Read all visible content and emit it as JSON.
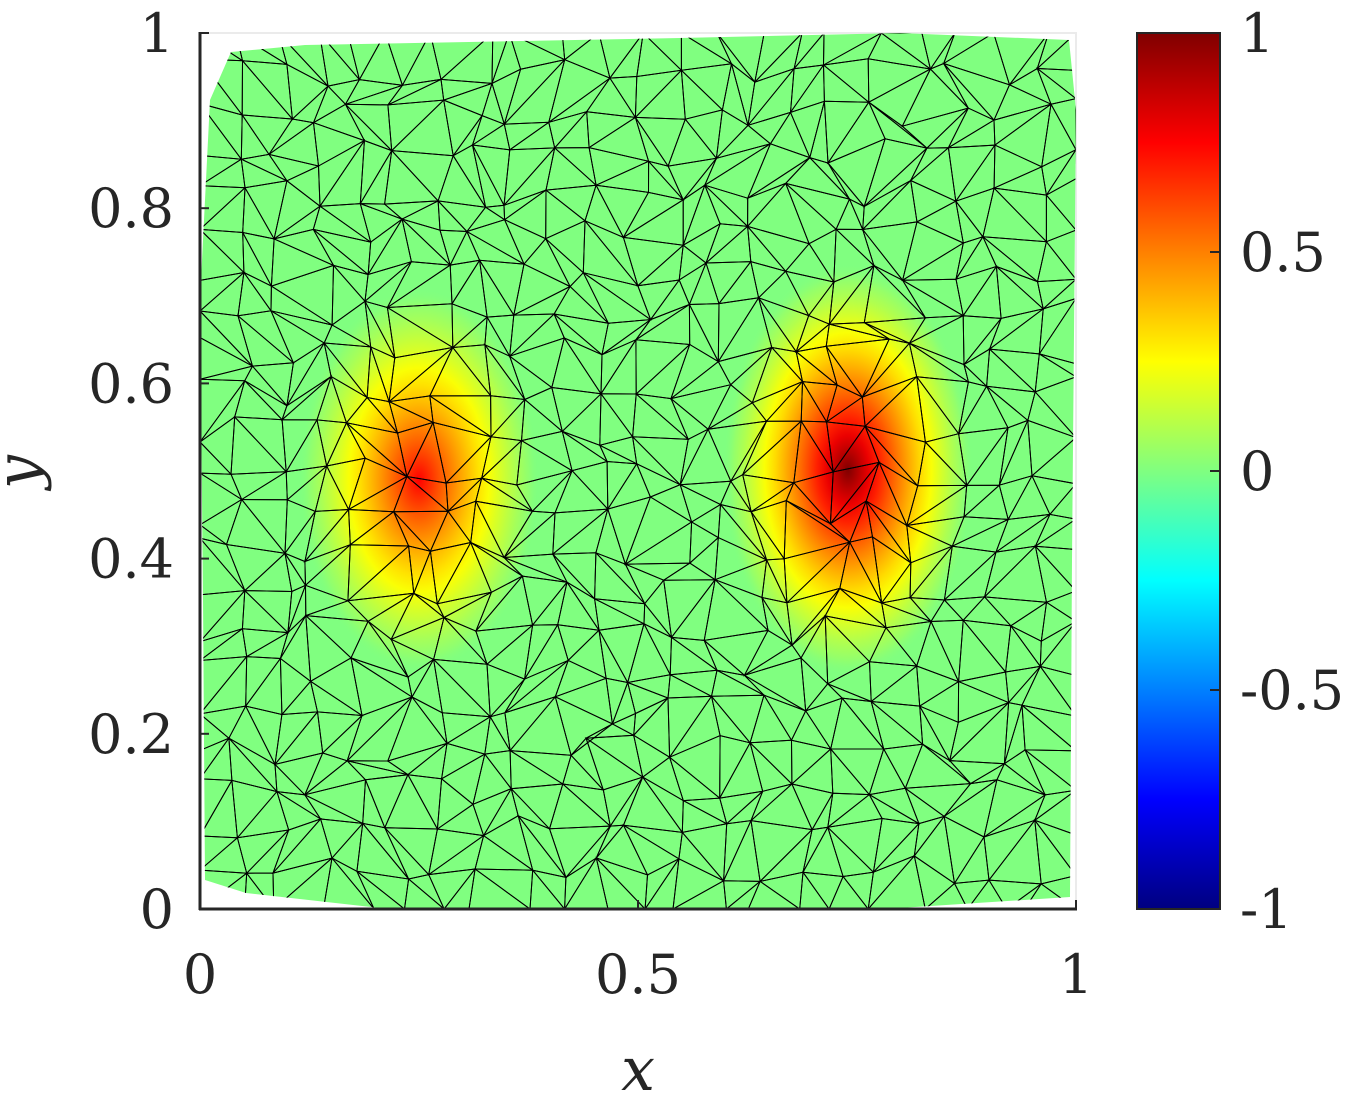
{
  "chart_data": {
    "type": "heatmap",
    "subtype": "triangulated-mesh-surface",
    "title": "",
    "xlabel": "x",
    "ylabel": "y",
    "xlim": [
      0,
      1
    ],
    "ylim": [
      0,
      1
    ],
    "x_ticks": [
      0,
      0.5,
      1
    ],
    "x_tick_labels": [
      "0",
      "0.5",
      "1"
    ],
    "y_ticks": [
      0,
      0.2,
      0.4,
      0.6,
      0.8,
      1
    ],
    "y_tick_labels": [
      "0",
      "0.2",
      "0.4",
      "0.6",
      "0.8",
      "1"
    ],
    "colormap": "jet",
    "colorbar": {
      "limits": [
        -1,
        1
      ],
      "ticks": [
        -1,
        -0.5,
        0,
        0.5,
        1
      ],
      "tick_labels": [
        "-1",
        "-0.5",
        "0",
        "0.5",
        "1"
      ]
    },
    "field": {
      "background_value": 0,
      "peaks": [
        {
          "x": 0.25,
          "y": 0.5,
          "value": 0.75
        },
        {
          "x": 0.75,
          "y": 0.5,
          "value": 1.0
        }
      ]
    },
    "mesh_edge_color": "#000000",
    "grid": false
  }
}
